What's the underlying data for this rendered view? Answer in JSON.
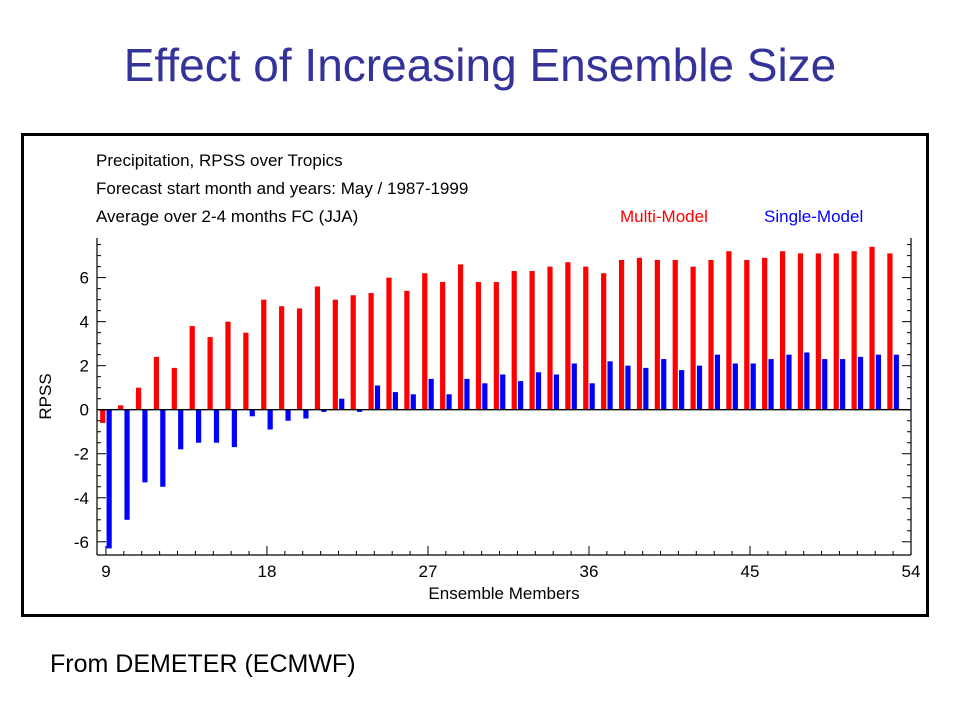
{
  "slide": {
    "title": "Effect of Increasing Ensemble Size",
    "source": "From DEMETER (ECMWF)"
  },
  "chart_data": {
    "type": "bar",
    "annotations": [
      "Precipitation, RPSS over Tropics",
      "Forecast start month and years: May / 1987-1999",
      "Average over 2-4 months FC (JJA)"
    ],
    "xlabel": "Ensemble Members",
    "ylabel": "RPSS",
    "xlim": [
      8.5,
      54
    ],
    "ylim": [
      -6.6,
      7.8
    ],
    "xticks": [
      9,
      18,
      27,
      36,
      45,
      54
    ],
    "yticks": [
      -6,
      -4,
      -2,
      0,
      2,
      4,
      6
    ],
    "legend_position": "top-right",
    "x": [
      9,
      10,
      11,
      12,
      13,
      14,
      15,
      16,
      17,
      18,
      19,
      20,
      21,
      22,
      23,
      24,
      25,
      26,
      27,
      28,
      29,
      30,
      31,
      32,
      33,
      34,
      35,
      36,
      37,
      38,
      39,
      40,
      41,
      42,
      43,
      44,
      45,
      46,
      47,
      48,
      49,
      50,
      51,
      52,
      53
    ],
    "series": [
      {
        "name": "Multi-Model",
        "color": "#ff0000",
        "values": [
          -0.6,
          0.2,
          1.0,
          2.4,
          1.9,
          3.8,
          3.3,
          4.0,
          3.5,
          5.0,
          4.7,
          4.6,
          5.6,
          5.0,
          5.2,
          5.3,
          6.0,
          5.4,
          6.2,
          5.8,
          6.6,
          5.8,
          5.8,
          6.3,
          6.3,
          6.5,
          6.7,
          6.5,
          6.2,
          6.8,
          6.9,
          6.8,
          6.8,
          6.5,
          6.8,
          7.2,
          6.8,
          6.9,
          7.2,
          7.1,
          7.1,
          7.1,
          7.2,
          7.4,
          7.1
        ]
      },
      {
        "name": "Single-Model",
        "color": "#0000ff",
        "values": [
          -6.3,
          -5.0,
          -3.3,
          -3.5,
          -1.8,
          -1.5,
          -1.5,
          -1.7,
          -0.3,
          -0.9,
          -0.5,
          -0.4,
          -0.1,
          0.5,
          -0.1,
          1.1,
          0.8,
          0.7,
          1.4,
          0.7,
          1.4,
          1.2,
          1.6,
          1.3,
          1.7,
          1.6,
          2.1,
          1.2,
          2.2,
          2.0,
          1.9,
          2.3,
          1.8,
          2.0,
          2.5,
          2.1,
          2.1,
          2.3,
          2.5,
          2.6,
          2.3,
          2.3,
          2.4,
          2.5,
          2.5
        ]
      }
    ]
  }
}
